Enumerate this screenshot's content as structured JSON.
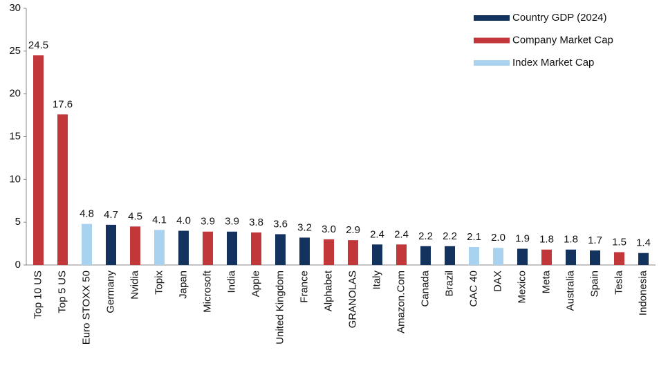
{
  "chart_data": {
    "type": "bar",
    "categories": [
      "Top 10 US",
      "Top 5 US",
      "Euro STOXX 50",
      "Germany",
      "Nvidia",
      "Topix",
      "Japan",
      "Microsoft",
      "India",
      "Apple",
      "United Kingdom",
      "France",
      "Alphabet",
      "GRANOLAS",
      "Italy",
      "Amazon.Com",
      "Canada",
      "Brazil",
      "CAC 40",
      "DAX",
      "Mexico",
      "Meta",
      "Australia",
      "Spain",
      "Tesla",
      "Indonesia"
    ],
    "series": [
      {
        "name": "Country GDP (2024)",
        "color": "#13325e",
        "values": [
          null,
          null,
          null,
          4.7,
          null,
          null,
          4,
          null,
          3.9,
          null,
          3.6,
          3.2,
          null,
          null,
          2.4,
          null,
          2.2,
          2.2,
          null,
          null,
          1.9,
          null,
          1.8,
          1.7,
          null,
          1.4
        ],
        "value_labels": [
          null,
          null,
          null,
          "4.7",
          null,
          null,
          "4.0",
          null,
          "3.9",
          null,
          "3.6",
          "3.2",
          null,
          null,
          "2.4",
          null,
          "2.2",
          "2.2",
          null,
          null,
          "1.9",
          null,
          "1.8",
          "1.7",
          null,
          "1.4"
        ]
      },
      {
        "name": "Company Market Cap",
        "color": "#c1373a",
        "values": [
          24.5,
          17.6,
          null,
          null,
          4.5,
          null,
          null,
          3.9,
          null,
          3.8,
          null,
          null,
          3,
          2.9,
          null,
          2.4,
          null,
          null,
          null,
          null,
          null,
          1.8,
          null,
          null,
          1.5,
          null
        ],
        "value_labels": [
          "24.5",
          "17.6",
          null,
          null,
          "4.5",
          null,
          null,
          "3.9",
          null,
          "3.8",
          null,
          null,
          "3.0",
          "2.9",
          null,
          "2.4",
          null,
          null,
          null,
          null,
          null,
          "1.8",
          null,
          null,
          "1.5",
          null
        ]
      },
      {
        "name": "Index Market Cap",
        "color": "#a9d2f0",
        "values": [
          null,
          null,
          4.8,
          null,
          null,
          4.1,
          null,
          null,
          null,
          null,
          null,
          null,
          null,
          null,
          null,
          null,
          null,
          null,
          2.1,
          2,
          null,
          null,
          null,
          null,
          null,
          null
        ],
        "value_labels": [
          null,
          null,
          "4.8",
          null,
          null,
          "4.1",
          null,
          null,
          null,
          null,
          null,
          null,
          null,
          null,
          null,
          null,
          null,
          null,
          "2.1",
          "2.0",
          null,
          null,
          null,
          null,
          null,
          null
        ]
      }
    ],
    "ylim": [
      0,
      30
    ],
    "yticks": [
      0,
      5,
      10,
      15,
      20,
      25,
      30
    ],
    "grid": false,
    "legend": "top-right"
  }
}
